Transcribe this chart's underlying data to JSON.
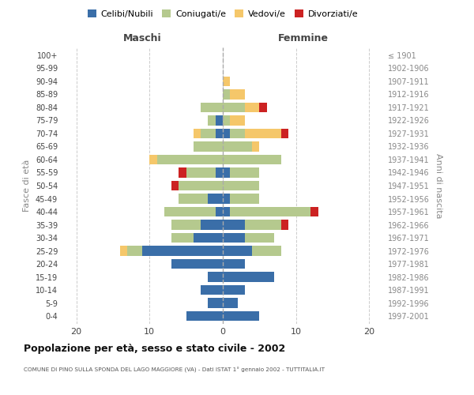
{
  "age_groups": [
    "0-4",
    "5-9",
    "10-14",
    "15-19",
    "20-24",
    "25-29",
    "30-34",
    "35-39",
    "40-44",
    "45-49",
    "50-54",
    "55-59",
    "60-64",
    "65-69",
    "70-74",
    "75-79",
    "80-84",
    "85-89",
    "90-94",
    "95-99",
    "100+"
  ],
  "birth_years": [
    "1997-2001",
    "1992-1996",
    "1987-1991",
    "1982-1986",
    "1977-1981",
    "1972-1976",
    "1967-1971",
    "1962-1966",
    "1957-1961",
    "1952-1956",
    "1947-1951",
    "1942-1946",
    "1937-1941",
    "1932-1936",
    "1927-1931",
    "1922-1926",
    "1917-1921",
    "1912-1916",
    "1907-1911",
    "1902-1906",
    "≤ 1901"
  ],
  "maschi": {
    "celibi": [
      5,
      2,
      3,
      2,
      7,
      11,
      4,
      3,
      1,
      2,
      0,
      1,
      0,
      0,
      1,
      1,
      0,
      0,
      0,
      0,
      0
    ],
    "coniugati": [
      0,
      0,
      0,
      0,
      0,
      2,
      3,
      4,
      7,
      4,
      6,
      4,
      9,
      4,
      2,
      1,
      3,
      0,
      0,
      0,
      0
    ],
    "vedovi": [
      0,
      0,
      0,
      0,
      0,
      1,
      0,
      0,
      0,
      0,
      0,
      0,
      1,
      0,
      1,
      0,
      0,
      0,
      0,
      0,
      0
    ],
    "divorziati": [
      0,
      0,
      0,
      0,
      0,
      0,
      0,
      0,
      0,
      0,
      1,
      1,
      0,
      0,
      0,
      0,
      0,
      0,
      0,
      0,
      0
    ]
  },
  "femmine": {
    "nubili": [
      5,
      2,
      3,
      7,
      3,
      4,
      3,
      3,
      1,
      1,
      0,
      1,
      0,
      0,
      1,
      0,
      0,
      0,
      0,
      0,
      0
    ],
    "coniugate": [
      0,
      0,
      0,
      0,
      0,
      4,
      4,
      5,
      11,
      4,
      5,
      4,
      8,
      4,
      2,
      1,
      3,
      1,
      0,
      0,
      0
    ],
    "vedove": [
      0,
      0,
      0,
      0,
      0,
      0,
      0,
      0,
      0,
      0,
      0,
      0,
      0,
      1,
      5,
      2,
      2,
      2,
      1,
      0,
      0
    ],
    "divorziate": [
      0,
      0,
      0,
      0,
      0,
      0,
      0,
      1,
      1,
      0,
      0,
      0,
      0,
      0,
      1,
      0,
      1,
      0,
      0,
      0,
      0
    ]
  },
  "colors": {
    "celibi": "#3a6ea8",
    "coniugati": "#b5c98e",
    "vedovi": "#f5c76a",
    "divorziati": "#cc2222"
  },
  "title": "Popolazione per età, sesso e stato civile - 2002",
  "subtitle": "COMUNE DI PINO SULLA SPONDA DEL LAGO MAGGIORE (VA) - Dati ISTAT 1° gennaio 2002 - TUTTITALIA.IT",
  "ylabel_left": "Fasce di età",
  "ylabel_right": "Anni di nascita",
  "xlabel_left": "Maschi",
  "xlabel_right": "Femmine",
  "xlim": 22,
  "background_color": "#ffffff",
  "grid_color": "#cccccc"
}
